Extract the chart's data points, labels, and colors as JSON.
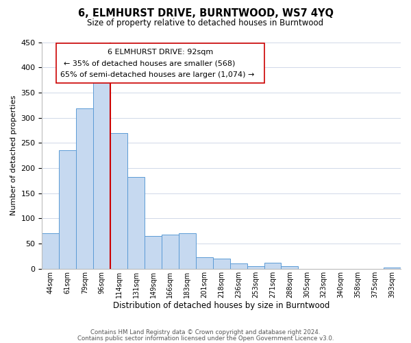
{
  "title": "6, ELMHURST DRIVE, BURNTWOOD, WS7 4YQ",
  "subtitle": "Size of property relative to detached houses in Burntwood",
  "xlabel": "Distribution of detached houses by size in Burntwood",
  "ylabel": "Number of detached properties",
  "categories": [
    "44sqm",
    "61sqm",
    "79sqm",
    "96sqm",
    "114sqm",
    "131sqm",
    "149sqm",
    "166sqm",
    "183sqm",
    "201sqm",
    "218sqm",
    "236sqm",
    "253sqm",
    "271sqm",
    "288sqm",
    "305sqm",
    "323sqm",
    "340sqm",
    "358sqm",
    "375sqm",
    "393sqm"
  ],
  "values": [
    70,
    235,
    318,
    370,
    270,
    182,
    65,
    68,
    70,
    23,
    20,
    10,
    5,
    12,
    5,
    0,
    0,
    0,
    0,
    0,
    2
  ],
  "bar_color": "#c6d9f0",
  "bar_edge_color": "#5b9bd5",
  "property_line_index": 3,
  "property_line_color": "#cc0000",
  "ylim": [
    0,
    450
  ],
  "annotation_title": "6 ELMHURST DRIVE: 92sqm",
  "annotation_line1": "← 35% of detached houses are smaller (568)",
  "annotation_line2": "65% of semi-detached houses are larger (1,074) →",
  "footer1": "Contains HM Land Registry data © Crown copyright and database right 2024.",
  "footer2": "Contains public sector information licensed under the Open Government Licence v3.0.",
  "background_color": "#ffffff",
  "grid_color": "#d0d8e8"
}
